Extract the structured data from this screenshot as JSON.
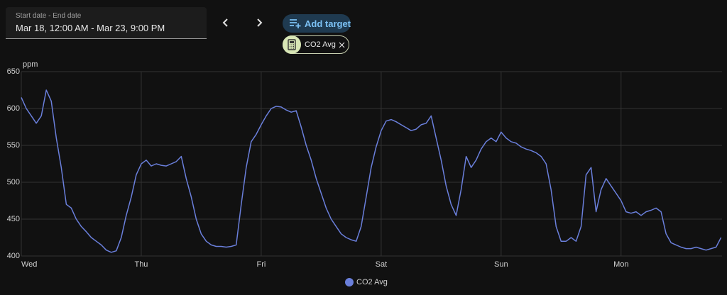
{
  "ui": {
    "date_range": {
      "label": "Start date - End date",
      "value": "Mar 18, 12:00 AM - Mar 23, 9:00 PM"
    },
    "add_target": "Add target",
    "targets": [
      {
        "label": "CO2 Avg"
      }
    ]
  },
  "chart_data": {
    "type": "line",
    "y_label": "ppm",
    "categories": [
      "Wed",
      null,
      null,
      null,
      null,
      null,
      null,
      null,
      null,
      null,
      null,
      null,
      null,
      null,
      null,
      null,
      null,
      null,
      null,
      null,
      null,
      null,
      null,
      null,
      "Thu",
      null,
      null,
      null,
      null,
      null,
      null,
      null,
      null,
      null,
      null,
      null,
      null,
      null,
      null,
      null,
      null,
      null,
      null,
      null,
      null,
      null,
      null,
      null,
      "Fri",
      null,
      null,
      null,
      null,
      null,
      null,
      null,
      null,
      null,
      null,
      null,
      null,
      null,
      null,
      null,
      null,
      null,
      null,
      null,
      null,
      null,
      null,
      null,
      "Sat",
      null,
      null,
      null,
      null,
      null,
      null,
      null,
      null,
      null,
      null,
      null,
      null,
      null,
      null,
      null,
      null,
      null,
      null,
      null,
      null,
      null,
      null,
      null,
      "Sun",
      null,
      null,
      null,
      null,
      null,
      null,
      null,
      null,
      null,
      null,
      null,
      null,
      null,
      null,
      null,
      null,
      null,
      null,
      null,
      null,
      null,
      null,
      null,
      "Mon",
      null,
      null,
      null,
      null,
      null,
      null,
      null,
      null,
      null,
      null,
      null,
      null,
      null,
      null,
      null,
      null,
      null,
      null,
      null,
      null
    ],
    "series": [
      {
        "name": "CO2 Avg",
        "color": "#6a7fdb",
        "values": [
          615,
          600,
          590,
          580,
          590,
          625,
          610,
          560,
          520,
          470,
          465,
          450,
          440,
          433,
          425,
          420,
          415,
          408,
          405,
          407,
          425,
          455,
          480,
          510,
          525,
          530,
          522,
          525,
          523,
          522,
          525,
          528,
          535,
          505,
          480,
          450,
          430,
          420,
          415,
          413,
          413,
          412,
          413,
          415,
          470,
          520,
          555,
          565,
          578,
          590,
          600,
          603,
          602,
          598,
          595,
          597,
          575,
          550,
          530,
          505,
          485,
          465,
          450,
          440,
          430,
          425,
          422,
          420,
          440,
          480,
          520,
          548,
          570,
          583,
          585,
          582,
          578,
          574,
          570,
          572,
          578,
          580,
          590,
          560,
          530,
          495,
          470,
          455,
          490,
          535,
          520,
          530,
          545,
          555,
          560,
          555,
          568,
          560,
          555,
          553,
          548,
          545,
          543,
          540,
          535,
          525,
          490,
          440,
          420,
          420,
          425,
          420,
          440,
          510,
          520,
          460,
          490,
          505,
          495,
          485,
          475,
          460,
          458,
          460,
          455,
          460,
          462,
          465,
          460,
          430,
          418,
          415,
          412,
          410,
          410,
          412,
          410,
          408,
          410,
          412,
          425
        ]
      }
    ],
    "ylim": [
      400,
      650
    ],
    "yticks": [
      400,
      450,
      500,
      550,
      600,
      650
    ],
    "grid": true
  }
}
